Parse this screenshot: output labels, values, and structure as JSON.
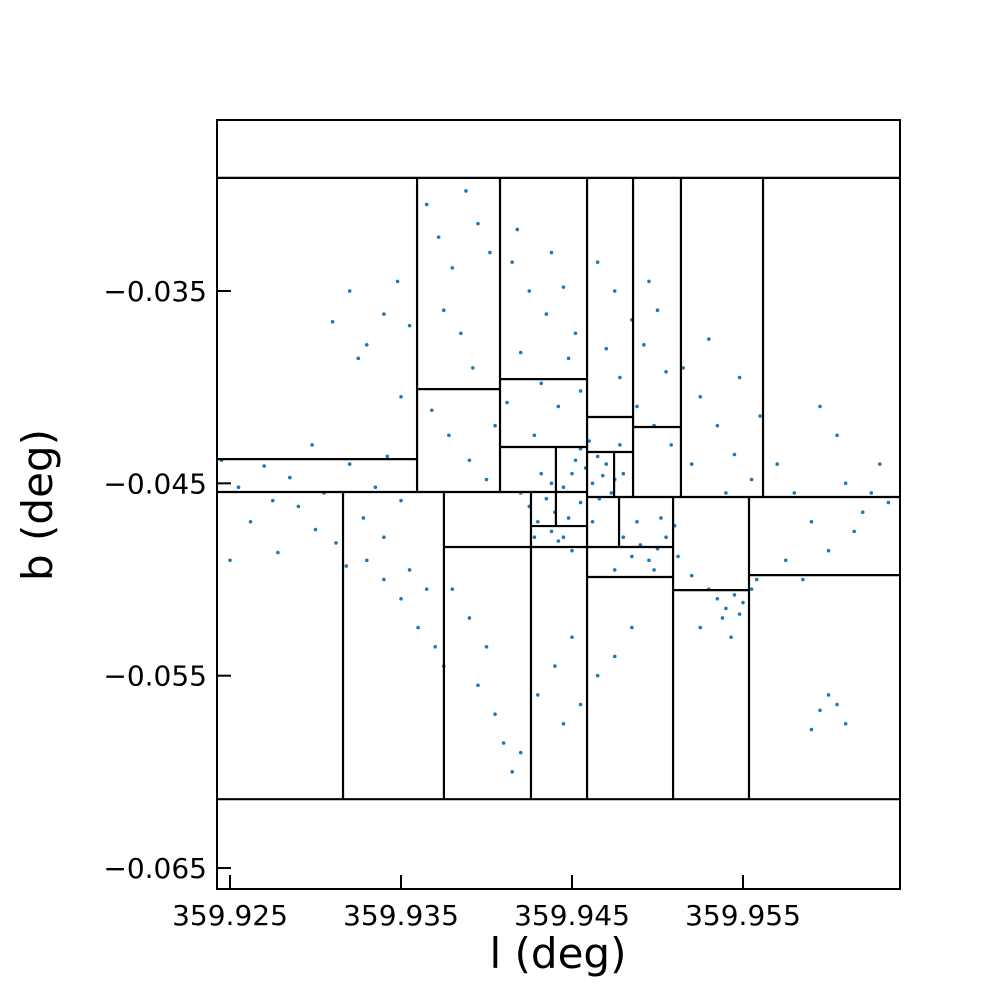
{
  "chart_data": {
    "type": "scatter",
    "x_label": "l (deg)",
    "y_label": "b (deg)",
    "color": "#1f77b4",
    "xlim": [
      359.92424,
      359.96418
    ],
    "ylim": [
      -0.06609,
      -0.02611
    ],
    "xticks": [
      359.925,
      359.935,
      359.945,
      359.955
    ],
    "yticks": [
      {
        "value": -0.035,
        "label": "−0.035"
      },
      {
        "value": -0.045,
        "label": "−0.045"
      },
      {
        "value": -0.055,
        "label": "−0.055"
      },
      {
        "value": -0.065,
        "label": "−0.065"
      }
    ],
    "segment_color": "#000000",
    "x": [
      359.9245,
      359.9255,
      359.9262,
      359.927,
      359.9278,
      359.9285,
      359.929,
      359.9298,
      359.9305,
      359.9312,
      359.932,
      359.9328,
      359.9335,
      359.9342,
      359.935,
      359.925,
      359.9275,
      359.93,
      359.934,
      359.9318,
      359.931,
      359.932,
      359.933,
      359.934,
      359.9348,
      359.9355,
      359.9325,
      359.935,
      359.9365,
      359.9372,
      359.938,
      359.9388,
      359.9395,
      359.9402,
      359.9375,
      359.9385,
      359.9392,
      359.9368,
      359.9378,
      359.939,
      359.94,
      359.9405,
      359.9415,
      359.9425,
      359.9435,
      359.9445,
      359.9452,
      359.942,
      359.9432,
      359.9442,
      359.9455,
      359.9418,
      359.9438,
      359.9428,
      359.9448,
      359.9412,
      359.942,
      359.9425,
      359.943,
      359.9435,
      359.9438,
      359.944,
      359.9442,
      359.9445,
      359.9448,
      359.945,
      359.9452,
      359.9455,
      359.9458,
      359.946,
      359.9462,
      359.9465,
      359.9468,
      359.947,
      359.9473,
      359.9475,
      359.9478,
      359.948,
      359.9445,
      359.9432,
      359.9455,
      359.9462,
      359.9428,
      359.945,
      359.9438,
      359.9466,
      359.9465,
      359.9475,
      359.9485,
      359.9492,
      359.95,
      359.9505,
      359.9478,
      359.9488,
      359.9498,
      359.9508,
      359.9495,
      359.947,
      359.948,
      359.9485,
      359.949,
      359.9495,
      359.95,
      359.9505,
      359.951,
      359.9498,
      359.9488,
      359.9475,
      359.9512,
      359.9502,
      359.953,
      359.9535,
      359.954,
      359.9545,
      359.9548,
      359.955,
      359.9555,
      359.9538,
      359.9558,
      359.952,
      359.9525,
      359.9543,
      359.9515,
      359.9525,
      359.9535,
      359.9545,
      359.9555,
      359.953,
      359.9548,
      359.952,
      359.954,
      359.956,
      359.957,
      359.958,
      359.959,
      359.96,
      359.961,
      359.962,
      359.963,
      359.9595,
      359.9605,
      359.9615,
      359.9625,
      359.9575,
      359.9585,
      359.9635,
      359.959,
      359.9595,
      359.96,
      359.9605,
      359.961,
      359.938,
      359.939,
      359.94,
      359.9395,
      359.9405,
      359.941,
      359.9415,
      359.942,
      359.943,
      359.944,
      359.9445,
      359.945,
      359.9455,
      359.9465,
      359.9475,
      359.9485,
      359.933,
      359.934,
      359.935,
      359.936,
      359.937,
      359.9365,
      359.9355,
      359.9375
    ],
    "values": [
      -0.0438,
      -0.0452,
      -0.047,
      -0.0441,
      -0.0486,
      -0.0447,
      -0.0462,
      -0.043,
      -0.0455,
      -0.0481,
      -0.044,
      -0.0468,
      -0.0452,
      -0.0436,
      -0.0459,
      -0.049,
      -0.0459,
      -0.0474,
      -0.0478,
      -0.0493,
      -0.0366,
      -0.035,
      -0.0378,
      -0.0362,
      -0.0345,
      -0.0368,
      -0.0385,
      -0.0405,
      -0.0305,
      -0.0322,
      -0.0338,
      -0.0298,
      -0.0315,
      -0.033,
      -0.036,
      -0.0372,
      -0.039,
      -0.0412,
      -0.0425,
      -0.0438,
      -0.0448,
      -0.042,
      -0.0335,
      -0.035,
      -0.0362,
      -0.0348,
      -0.0372,
      -0.0382,
      -0.0398,
      -0.041,
      -0.0402,
      -0.0318,
      -0.033,
      -0.0425,
      -0.0385,
      -0.0408,
      -0.0455,
      -0.0462,
      -0.047,
      -0.0458,
      -0.0475,
      -0.0465,
      -0.048,
      -0.0452,
      -0.0468,
      -0.0445,
      -0.0438,
      -0.0432,
      -0.0442,
      -0.0428,
      -0.045,
      -0.0436,
      -0.0446,
      -0.044,
      -0.0455,
      -0.0448,
      -0.043,
      -0.0445,
      -0.0478,
      -0.0445,
      -0.046,
      -0.047,
      -0.0478,
      -0.0485,
      -0.045,
      -0.0458,
      -0.0335,
      -0.035,
      -0.0365,
      -0.0378,
      -0.036,
      -0.0392,
      -0.0395,
      -0.041,
      -0.042,
      -0.043,
      -0.0345,
      -0.038,
      -0.0478,
      -0.0488,
      -0.0482,
      -0.049,
      -0.0484,
      -0.0478,
      -0.0472,
      -0.0495,
      -0.047,
      -0.0495,
      -0.0488,
      -0.0468,
      -0.0505,
      -0.051,
      -0.0515,
      -0.0508,
      -0.0518,
      -0.0512,
      -0.0505,
      -0.052,
      -0.05,
      -0.0498,
      -0.0525,
      -0.053,
      -0.039,
      -0.0405,
      -0.042,
      -0.0435,
      -0.0448,
      -0.0375,
      -0.0395,
      -0.044,
      -0.0455,
      -0.0415,
      -0.044,
      -0.0455,
      -0.047,
      -0.0485,
      -0.045,
      -0.0465,
      -0.044,
      -0.041,
      -0.0425,
      -0.0475,
      -0.0455,
      -0.049,
      -0.05,
      -0.046,
      -0.0578,
      -0.0568,
      -0.056,
      -0.0565,
      -0.0575,
      -0.0505,
      -0.052,
      -0.0535,
      -0.0555,
      -0.057,
      -0.0585,
      -0.06,
      -0.059,
      -0.056,
      -0.0545,
      -0.0575,
      -0.053,
      -0.0565,
      -0.055,
      -0.054,
      -0.0525,
      -0.049,
      -0.05,
      -0.051,
      -0.0525,
      -0.0535,
      -0.0505,
      -0.0495,
      -0.0545
    ],
    "segments": [
      [
        359.92424,
        -0.02912,
        359.96418,
        -0.02912
      ],
      [
        359.92424,
        -0.06142,
        359.96418,
        -0.06142
      ],
      [
        359.92424,
        -0.04374,
        359.93594,
        -0.04374
      ],
      [
        359.92424,
        -0.04545,
        359.94588,
        -0.04545
      ],
      [
        359.94588,
        -0.04571,
        359.96418,
        -0.04571
      ],
      [
        359.93594,
        -0.02912,
        359.93594,
        -0.04545
      ],
      [
        359.94079,
        -0.02912,
        359.94079,
        -0.04545
      ],
      [
        359.94588,
        -0.02912,
        359.94588,
        -0.06142
      ],
      [
        359.94857,
        -0.02912,
        359.94857,
        -0.04571
      ],
      [
        359.95137,
        -0.02912,
        359.95137,
        -0.04571
      ],
      [
        359.95617,
        -0.02912,
        359.95617,
        -0.04571
      ],
      [
        359.93161,
        -0.04545,
        359.93161,
        -0.06142
      ],
      [
        359.93751,
        -0.04545,
        359.93751,
        -0.06142
      ],
      [
        359.9426,
        -0.04545,
        359.9426,
        -0.06142
      ],
      [
        359.95091,
        -0.04571,
        359.95091,
        -0.06142
      ],
      [
        359.95535,
        -0.04571,
        359.95535,
        -0.06142
      ],
      [
        359.93594,
        -0.0401,
        359.94079,
        -0.0401
      ],
      [
        359.94079,
        -0.03958,
        359.94588,
        -0.03958
      ],
      [
        359.94079,
        -0.04311,
        359.94588,
        -0.04311
      ],
      [
        359.93751,
        -0.04831,
        359.95091,
        -0.04831
      ],
      [
        359.9426,
        -0.04722,
        359.94588,
        -0.04722
      ],
      [
        359.94406,
        -0.04311,
        359.94406,
        -0.04722
      ],
      [
        359.94588,
        -0.04155,
        359.94857,
        -0.04155
      ],
      [
        359.94588,
        -0.04337,
        359.94857,
        -0.04337
      ],
      [
        359.94746,
        -0.04337,
        359.94746,
        -0.04571
      ],
      [
        359.94857,
        -0.04207,
        359.95137,
        -0.04207
      ],
      [
        359.94775,
        -0.04571,
        359.94775,
        -0.04831
      ],
      [
        359.94588,
        -0.04987,
        359.95091,
        -0.04987
      ],
      [
        359.95091,
        -0.05055,
        359.95535,
        -0.05055
      ],
      [
        359.95535,
        -0.04977,
        359.96418,
        -0.04977
      ]
    ]
  }
}
